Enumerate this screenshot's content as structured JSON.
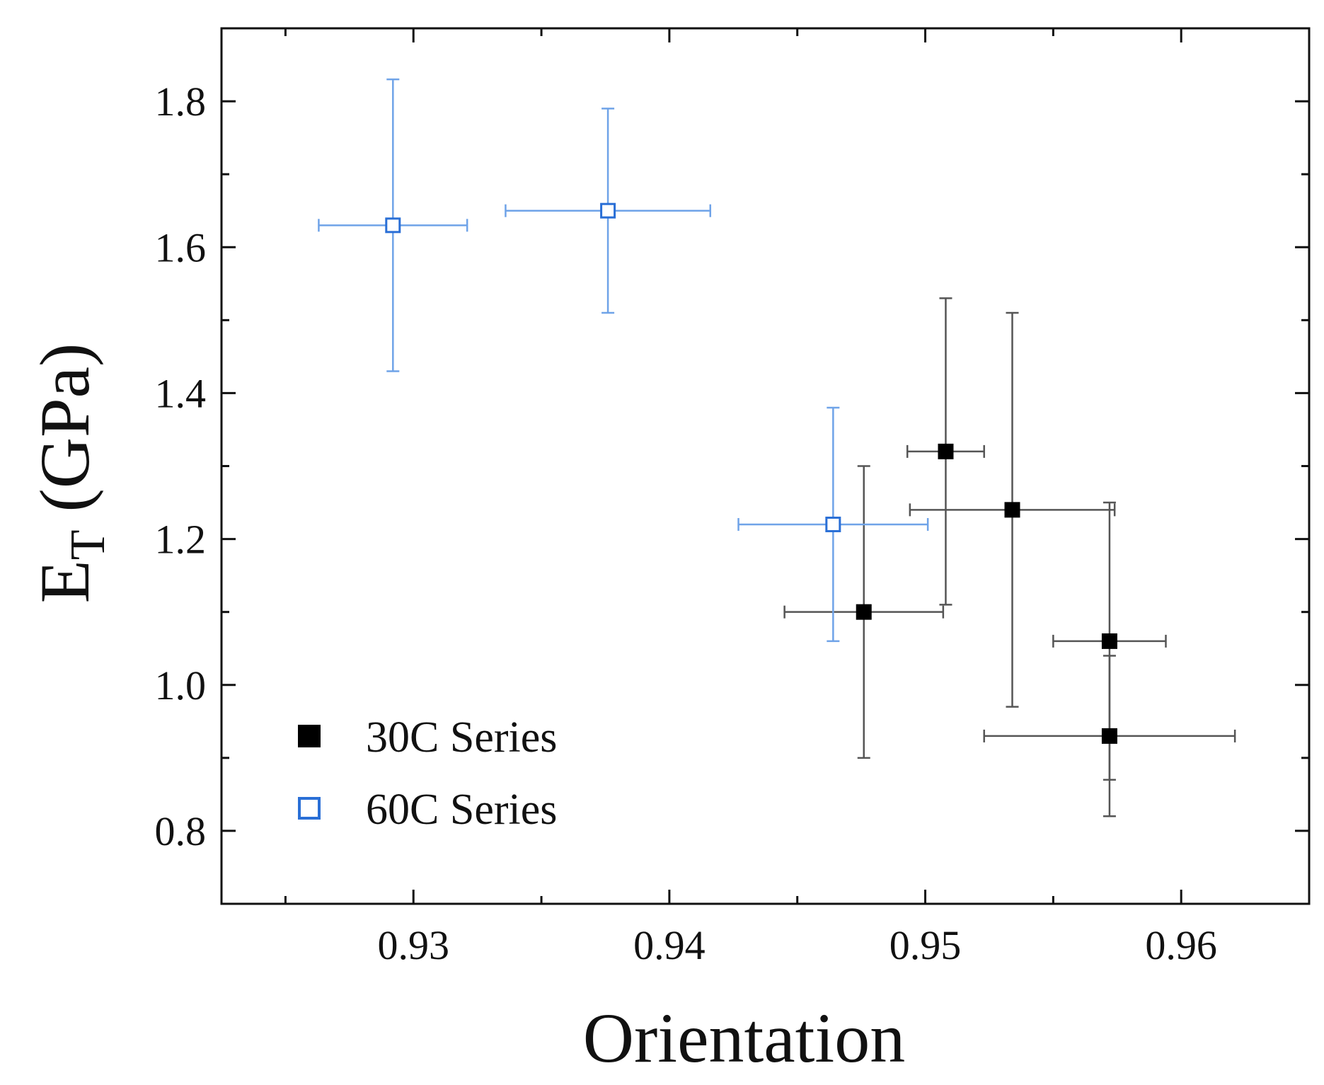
{
  "chart_data": {
    "type": "scatter",
    "title": "",
    "xlabel": "Orientation",
    "ylabel_main": "E",
    "ylabel_sub": "T",
    "ylabel_unit": " (GPa)",
    "xlim": [
      0.9225,
      0.965
    ],
    "ylim": [
      0.7,
      1.9
    ],
    "xticks": [
      0.93,
      0.94,
      0.95,
      0.96
    ],
    "xtick_labels": [
      "0.93",
      "0.94",
      "0.95",
      "0.96"
    ],
    "xminor": [
      0.925,
      0.935,
      0.945,
      0.955
    ],
    "yticks": [
      0.8,
      1.0,
      1.2,
      1.4,
      1.6,
      1.8
    ],
    "ytick_labels": [
      "0.8",
      "1.0",
      "1.2",
      "1.4",
      "1.6",
      "1.8"
    ],
    "yminor": [
      0.9,
      1.1,
      1.3,
      1.5,
      1.7
    ],
    "legend_position": "bottom-left",
    "series": [
      {
        "name": "30C Series",
        "marker": "filled-square",
        "color": "#000000",
        "errorbar_color": "#555555",
        "points": [
          {
            "x": 0.9476,
            "y": 1.1,
            "xerr": 0.0031,
            "yerr": 0.2
          },
          {
            "x": 0.9508,
            "y": 1.32,
            "xerr": 0.0015,
            "yerr_low": 0.21,
            "yerr_high": 0.21
          },
          {
            "x": 0.9534,
            "y": 1.24,
            "xerr": 0.004,
            "yerr_low": 0.27,
            "yerr_high": 0.27
          },
          {
            "x": 0.9572,
            "y": 1.06,
            "xerr": 0.0022,
            "yerr_low": 0.19,
            "yerr_high": 0.19
          },
          {
            "x": 0.9572,
            "y": 0.93,
            "xerr": 0.0049,
            "yerr_low": 0.11,
            "yerr_high": 0.11
          }
        ]
      },
      {
        "name": "60C Series",
        "marker": "open-square",
        "color": "#2a6fd6",
        "errorbar_color": "#6fa3e8",
        "points": [
          {
            "x": 0.9292,
            "y": 1.63,
            "xerr": 0.0029,
            "yerr": 0.2
          },
          {
            "x": 0.9376,
            "y": 1.65,
            "xerr": 0.004,
            "yerr": 0.14
          },
          {
            "x": 0.9464,
            "y": 1.22,
            "xerr": 0.0037,
            "yerr": 0.16
          }
        ]
      }
    ]
  }
}
